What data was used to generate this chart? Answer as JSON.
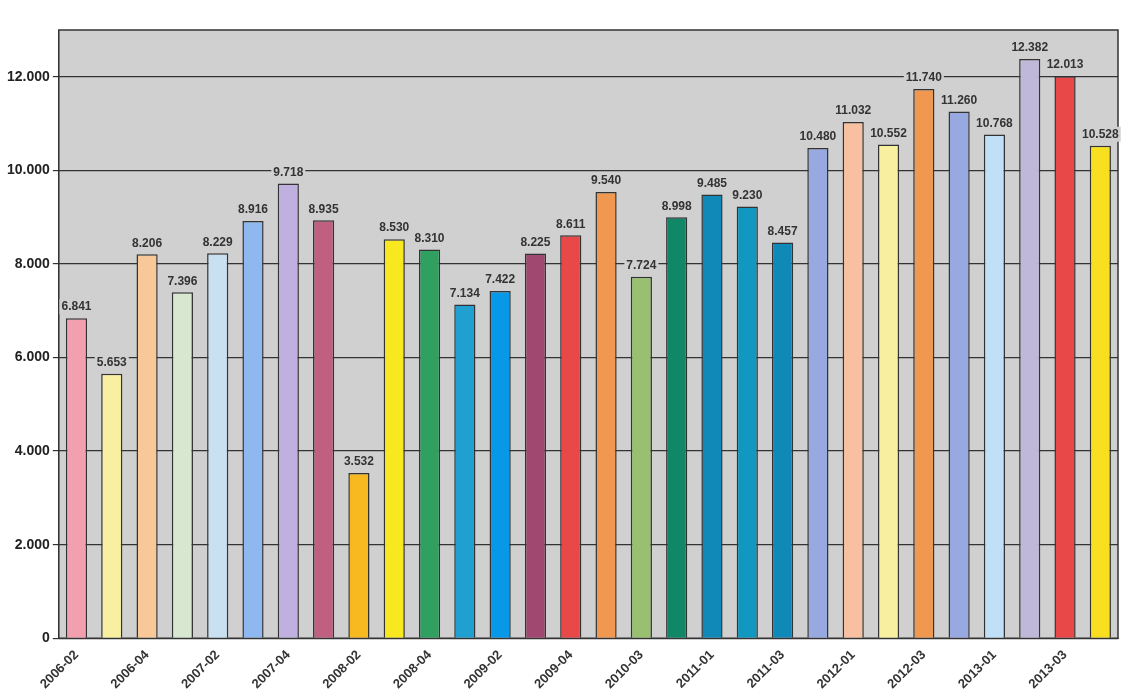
{
  "chart_data": {
    "type": "bar",
    "categories": [
      "2006-02",
      null,
      "2006-04",
      null,
      "2007-02",
      null,
      "2007-04",
      null,
      "2008-02",
      null,
      "2008-04",
      null,
      "2009-02",
      null,
      "2009-04",
      null,
      "2010-03",
      null,
      "2011-01",
      null,
      "2011-03",
      null,
      "2012-01",
      null,
      "2012-03",
      null,
      "2013-01",
      null,
      "2013-03",
      null
    ],
    "values": [
      6841,
      5653,
      8206,
      7396,
      8229,
      8916,
      9718,
      8935,
      3532,
      8530,
      8310,
      7134,
      7422,
      8225,
      8611,
      9540,
      7724,
      8998,
      9485,
      9230,
      8457,
      10480,
      11032,
      10552,
      11740,
      11260,
      10768,
      12382,
      12013,
      10528
    ],
    "value_labels": [
      "6.841",
      "5.653",
      "8.206",
      "7.396",
      "8.229",
      "8.916",
      "9.718",
      "8.935",
      "3.532",
      "8.530",
      "8.310",
      "7.134",
      "7.422",
      "8.225",
      "8.611",
      "9.540",
      "7.724",
      "8.998",
      "9.485",
      "9.230",
      "8.457",
      "10.480",
      "11.032",
      "10.552",
      "11.740",
      "11.260",
      "10.768",
      "12.382",
      "12.013",
      "10.528"
    ],
    "colors": [
      "#f2a0b0",
      "#f8f0a0",
      "#f8c898",
      "#d8e8d0",
      "#c8e0f0",
      "#90b8f0",
      "#c0b0e0",
      "#c06080",
      "#f8b820",
      "#f8e820",
      "#30a060",
      "#20a0d0",
      "#0898e8",
      "#a04870",
      "#e84848",
      "#f09850",
      "#98c070",
      "#108868",
      "#1088b8",
      "#1098c0",
      "#1088b8",
      "#98a8e0",
      "#f8c0a0",
      "#f8f0a0",
      "#f09850",
      "#98a8e0",
      "#c0e0f8",
      "#c0b8d8",
      "#e84848",
      "#f8e020"
    ],
    "ylim": [
      0,
      13000
    ],
    "yticks": [
      0,
      {
        "value": 2000,
        "label": "2.000"
      },
      {
        "value": 4000,
        "label": "4.000"
      },
      {
        "value": 6000,
        "label": "6.000"
      },
      {
        "value": 8000,
        "label": "8.000"
      },
      {
        "value": 10000,
        "label": "10.000"
      },
      {
        "value": 12000,
        "label": "12.000"
      }
    ],
    "grid": "y",
    "legend": false
  }
}
